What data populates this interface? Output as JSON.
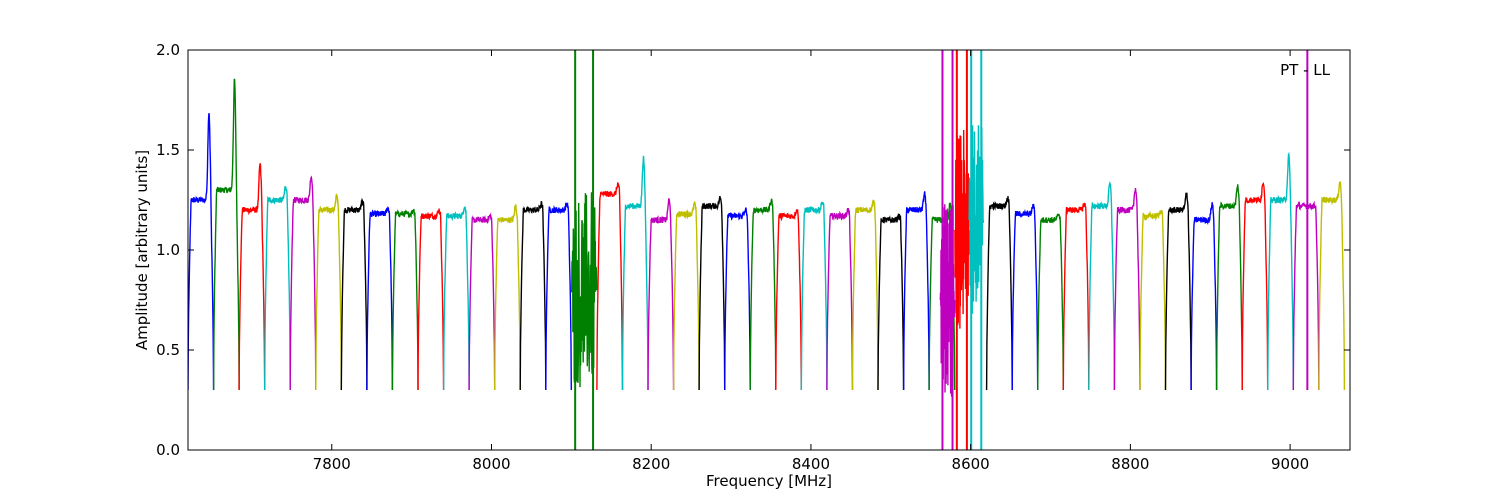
{
  "chart_data": {
    "type": "line",
    "title": "",
    "annotation": "PT - LL",
    "xlabel": "Frequency [MHz]",
    "ylabel": "Amplitude [arbitrary units]",
    "xlim": [
      7620,
      9075
    ],
    "ylim": [
      0.0,
      2.0
    ],
    "xticks": [
      7800,
      8000,
      8200,
      8400,
      8600,
      8800,
      9000
    ],
    "yticks": [
      0.0,
      0.5,
      1.0,
      1.5,
      2.0
    ],
    "xtick_labels": [
      "7800",
      "8000",
      "8200",
      "8400",
      "8600",
      "8800",
      "9000"
    ],
    "ytick_labels": [
      "0.0",
      "0.5",
      "1.0",
      "1.5",
      "2.0"
    ],
    "grid": false,
    "series_colors": [
      "#0000ff",
      "#008000",
      "#ff0000",
      "#00bfbf",
      "#bf00bf",
      "#bfbf00",
      "#000000"
    ],
    "channel_width_mhz": 32,
    "channels": [
      {
        "start": 7620,
        "color": "#0000ff",
        "peak": 1.69,
        "level": 1.25
      },
      {
        "start": 7652,
        "color": "#008000",
        "peak": 1.85,
        "level": 1.3
      },
      {
        "start": 7684,
        "color": "#ff0000",
        "peak": 1.43,
        "level": 1.2
      },
      {
        "start": 7716,
        "color": "#00bfbf",
        "peak": 1.32,
        "level": 1.25
      },
      {
        "start": 7748,
        "color": "#bf00bf",
        "peak": 1.37,
        "level": 1.25
      },
      {
        "start": 7780,
        "color": "#bfbf00",
        "peak": 1.27,
        "level": 1.2
      },
      {
        "start": 7812,
        "color": "#000000",
        "peak": 1.24,
        "level": 1.2
      },
      {
        "start": 7844,
        "color": "#0000ff",
        "peak": 1.21,
        "level": 1.18
      },
      {
        "start": 7876,
        "color": "#008000",
        "peak": 1.2,
        "level": 1.18
      },
      {
        "start": 7908,
        "color": "#ff0000",
        "peak": 1.2,
        "level": 1.17
      },
      {
        "start": 7940,
        "color": "#00bfbf",
        "peak": 1.22,
        "level": 1.17
      },
      {
        "start": 7972,
        "color": "#bf00bf",
        "peak": 1.17,
        "level": 1.15
      },
      {
        "start": 8004,
        "color": "#bfbf00",
        "peak": 1.22,
        "level": 1.15
      },
      {
        "start": 8036,
        "color": "#000000",
        "peak": 1.23,
        "level": 1.2
      },
      {
        "start": 8068,
        "color": "#0000ff",
        "peak": 1.23,
        "level": 1.2
      },
      {
        "start": 8100,
        "color": "#008000",
        "peak": 2.0,
        "level": 0.8,
        "noisy": true
      },
      {
        "start": 8132,
        "color": "#ff0000",
        "peak": 1.33,
        "level": 1.28
      },
      {
        "start": 8164,
        "color": "#00bfbf",
        "peak": 1.46,
        "level": 1.22
      },
      {
        "start": 8196,
        "color": "#bf00bf",
        "peak": 1.25,
        "level": 1.15
      },
      {
        "start": 8228,
        "color": "#bfbf00",
        "peak": 1.23,
        "level": 1.18
      },
      {
        "start": 8260,
        "color": "#000000",
        "peak": 1.26,
        "level": 1.22
      },
      {
        "start": 8292,
        "color": "#0000ff",
        "peak": 1.2,
        "level": 1.17
      },
      {
        "start": 8324,
        "color": "#008000",
        "peak": 1.25,
        "level": 1.2
      },
      {
        "start": 8356,
        "color": "#ff0000",
        "peak": 1.2,
        "level": 1.17
      },
      {
        "start": 8388,
        "color": "#00bfbf",
        "peak": 1.24,
        "level": 1.2
      },
      {
        "start": 8420,
        "color": "#bf00bf",
        "peak": 1.2,
        "level": 1.17
      },
      {
        "start": 8452,
        "color": "#bfbf00",
        "peak": 1.24,
        "level": 1.2
      },
      {
        "start": 8484,
        "color": "#000000",
        "peak": 1.17,
        "level": 1.15
      },
      {
        "start": 8516,
        "color": "#0000ff",
        "peak": 1.28,
        "level": 1.2
      },
      {
        "start": 8548,
        "color": "#008000",
        "peak": 1.24,
        "level": 1.15
      },
      {
        "start": 8562,
        "color": "#bf00bf",
        "peak": 2.0,
        "level": 0.75,
        "noisy": true,
        "narrow": true
      },
      {
        "start": 8580,
        "color": "#ff0000",
        "peak": 2.0,
        "level": 1.1,
        "noisy": true,
        "narrow": true
      },
      {
        "start": 8598,
        "color": "#00bfbf",
        "peak": 2.0,
        "level": 1.15,
        "noisy": true,
        "narrow": true
      },
      {
        "start": 8620,
        "color": "#000000",
        "peak": 1.26,
        "level": 1.22
      },
      {
        "start": 8652,
        "color": "#0000ff",
        "peak": 1.22,
        "level": 1.18
      },
      {
        "start": 8684,
        "color": "#008000",
        "peak": 1.18,
        "level": 1.15
      },
      {
        "start": 8716,
        "color": "#ff0000",
        "peak": 1.23,
        "level": 1.2
      },
      {
        "start": 8748,
        "color": "#00bfbf",
        "peak": 1.33,
        "level": 1.22
      },
      {
        "start": 8780,
        "color": "#bf00bf",
        "peak": 1.31,
        "level": 1.2
      },
      {
        "start": 8812,
        "color": "#bfbf00",
        "peak": 1.2,
        "level": 1.17
      },
      {
        "start": 8844,
        "color": "#000000",
        "peak": 1.28,
        "level": 1.2
      },
      {
        "start": 8876,
        "color": "#0000ff",
        "peak": 1.23,
        "level": 1.15
      },
      {
        "start": 8908,
        "color": "#008000",
        "peak": 1.32,
        "level": 1.22
      },
      {
        "start": 8940,
        "color": "#ff0000",
        "peak": 1.34,
        "level": 1.25
      },
      {
        "start": 8972,
        "color": "#00bfbf",
        "peak": 1.47,
        "level": 1.25
      },
      {
        "start": 9004,
        "color": "#bf00bf",
        "peak": 2.0,
        "level": 1.22
      },
      {
        "start": 9036,
        "color": "#bfbf00",
        "peak": 1.34,
        "level": 1.25
      }
    ]
  }
}
